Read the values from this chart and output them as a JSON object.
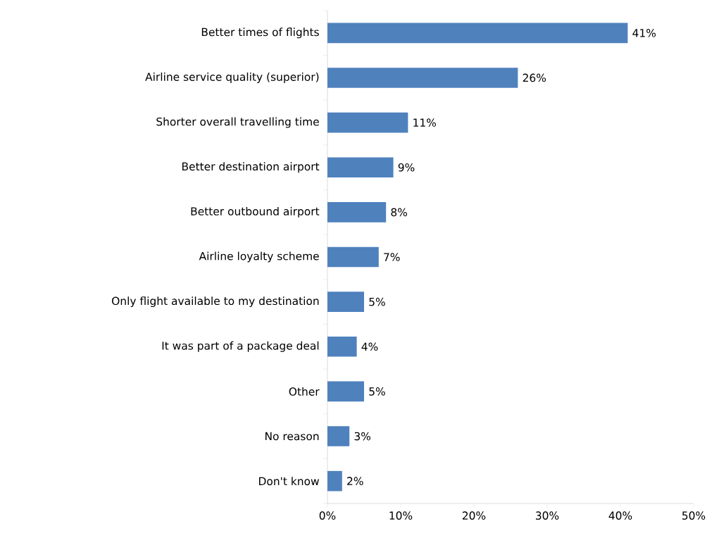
{
  "chart_data": {
    "type": "bar",
    "orientation": "horizontal",
    "categories": [
      "Better times of flights",
      "Airline service quality (superior)",
      "Shorter overall travelling time",
      "Better destination airport",
      "Better outbound airport",
      "Airline loyalty scheme",
      "Only flight available to my destination",
      "It was part of a package deal",
      "Other",
      "No reason",
      "Don't know"
    ],
    "values": [
      41,
      26,
      11,
      9,
      8,
      7,
      5,
      4,
      5,
      3,
      2
    ],
    "value_labels": [
      "41%",
      "26%",
      "11%",
      "9%",
      "8%",
      "7%",
      "5%",
      "4%",
      "5%",
      "3%",
      "2%"
    ],
    "color": "#4f81bd",
    "xlim": [
      0,
      50
    ],
    "xticks": [
      {
        "value": 0,
        "label": "0%"
      },
      {
        "value": 10,
        "label": "10%"
      },
      {
        "value": 20,
        "label": "20%"
      },
      {
        "value": 30,
        "label": "30%"
      },
      {
        "value": 40,
        "label": "40%"
      },
      {
        "value": 50,
        "label": "50%"
      }
    ],
    "grid": false
  }
}
